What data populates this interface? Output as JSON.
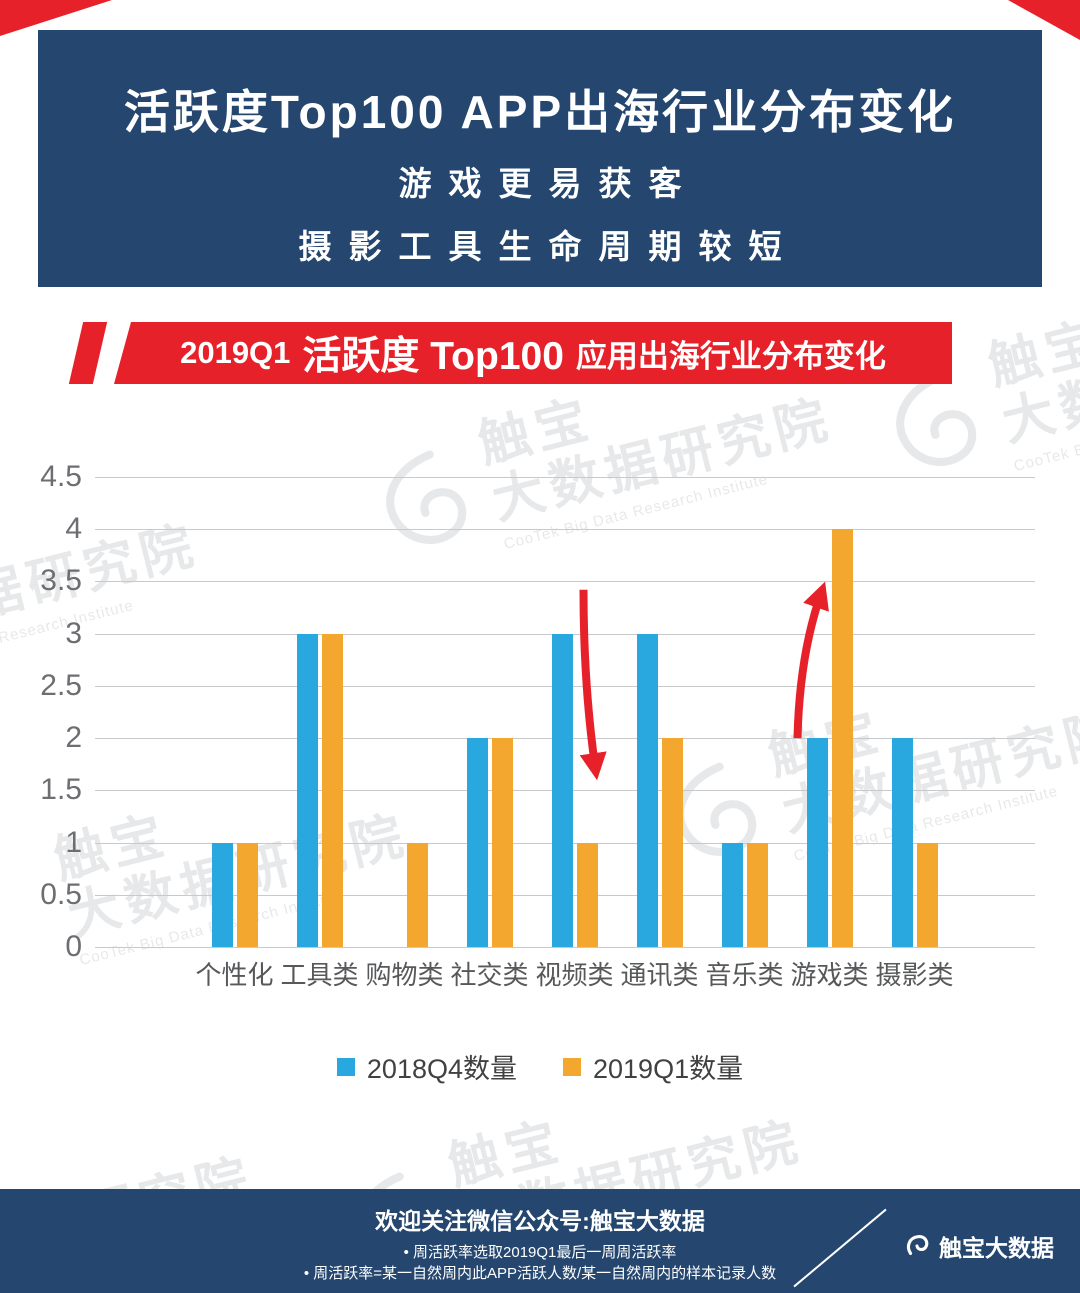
{
  "header": {
    "title": "活跃度Top100 APP出海行业分布变化",
    "subtitle_line1": "游戏更易获客",
    "subtitle_line2": "摄影工具生命周期较短"
  },
  "banner": {
    "part1": "2019Q1",
    "part2": "活跃度 Top100",
    "part3": "应用出海行业分布变化"
  },
  "chart_data": {
    "type": "bar",
    "title": "2019Q1 活跃度 Top100 应用出海行业分布变化",
    "categories": [
      "个性化",
      "工具类",
      "购物类",
      "社交类",
      "视频类",
      "通讯类",
      "音乐类",
      "游戏类",
      "摄影类"
    ],
    "series": [
      {
        "name": "2018Q4数量",
        "color": "#29A8E0",
        "values": [
          1,
          3,
          0,
          2,
          3,
          3,
          1,
          2,
          2
        ]
      },
      {
        "name": "2019Q1数量",
        "color": "#F3A72E",
        "values": [
          1,
          3,
          1,
          2,
          1,
          2,
          1,
          4,
          1
        ]
      }
    ],
    "ylim": [
      0,
      4.5
    ],
    "yticks": [
      "0",
      "0.5",
      "1",
      "1.5",
      "2",
      "2.5",
      "3",
      "3.5",
      "4",
      "4.5"
    ],
    "grid": true,
    "legend_position": "bottom",
    "annotations": [
      {
        "category": "视频类",
        "direction": "down"
      },
      {
        "category": "游戏类",
        "direction": "up"
      }
    ]
  },
  "watermark": {
    "line1": "触宝",
    "line2": "大数据研究院",
    "en": "CooTek Big Data Research Institute"
  },
  "footer": {
    "title": "欢迎关注微信公众号:触宝大数据",
    "notes": [
      "周活跃率选取2019Q1最后一周周活跃率",
      "周活跃率=某一自然周内此APP活跃人数/某一自然周内的样本记录人数"
    ],
    "brand": "触宝大数据"
  },
  "colors": {
    "navy": "#24466F",
    "red": "#E62129",
    "blue_bar": "#29A8E0",
    "orange_bar": "#F3A72E"
  }
}
